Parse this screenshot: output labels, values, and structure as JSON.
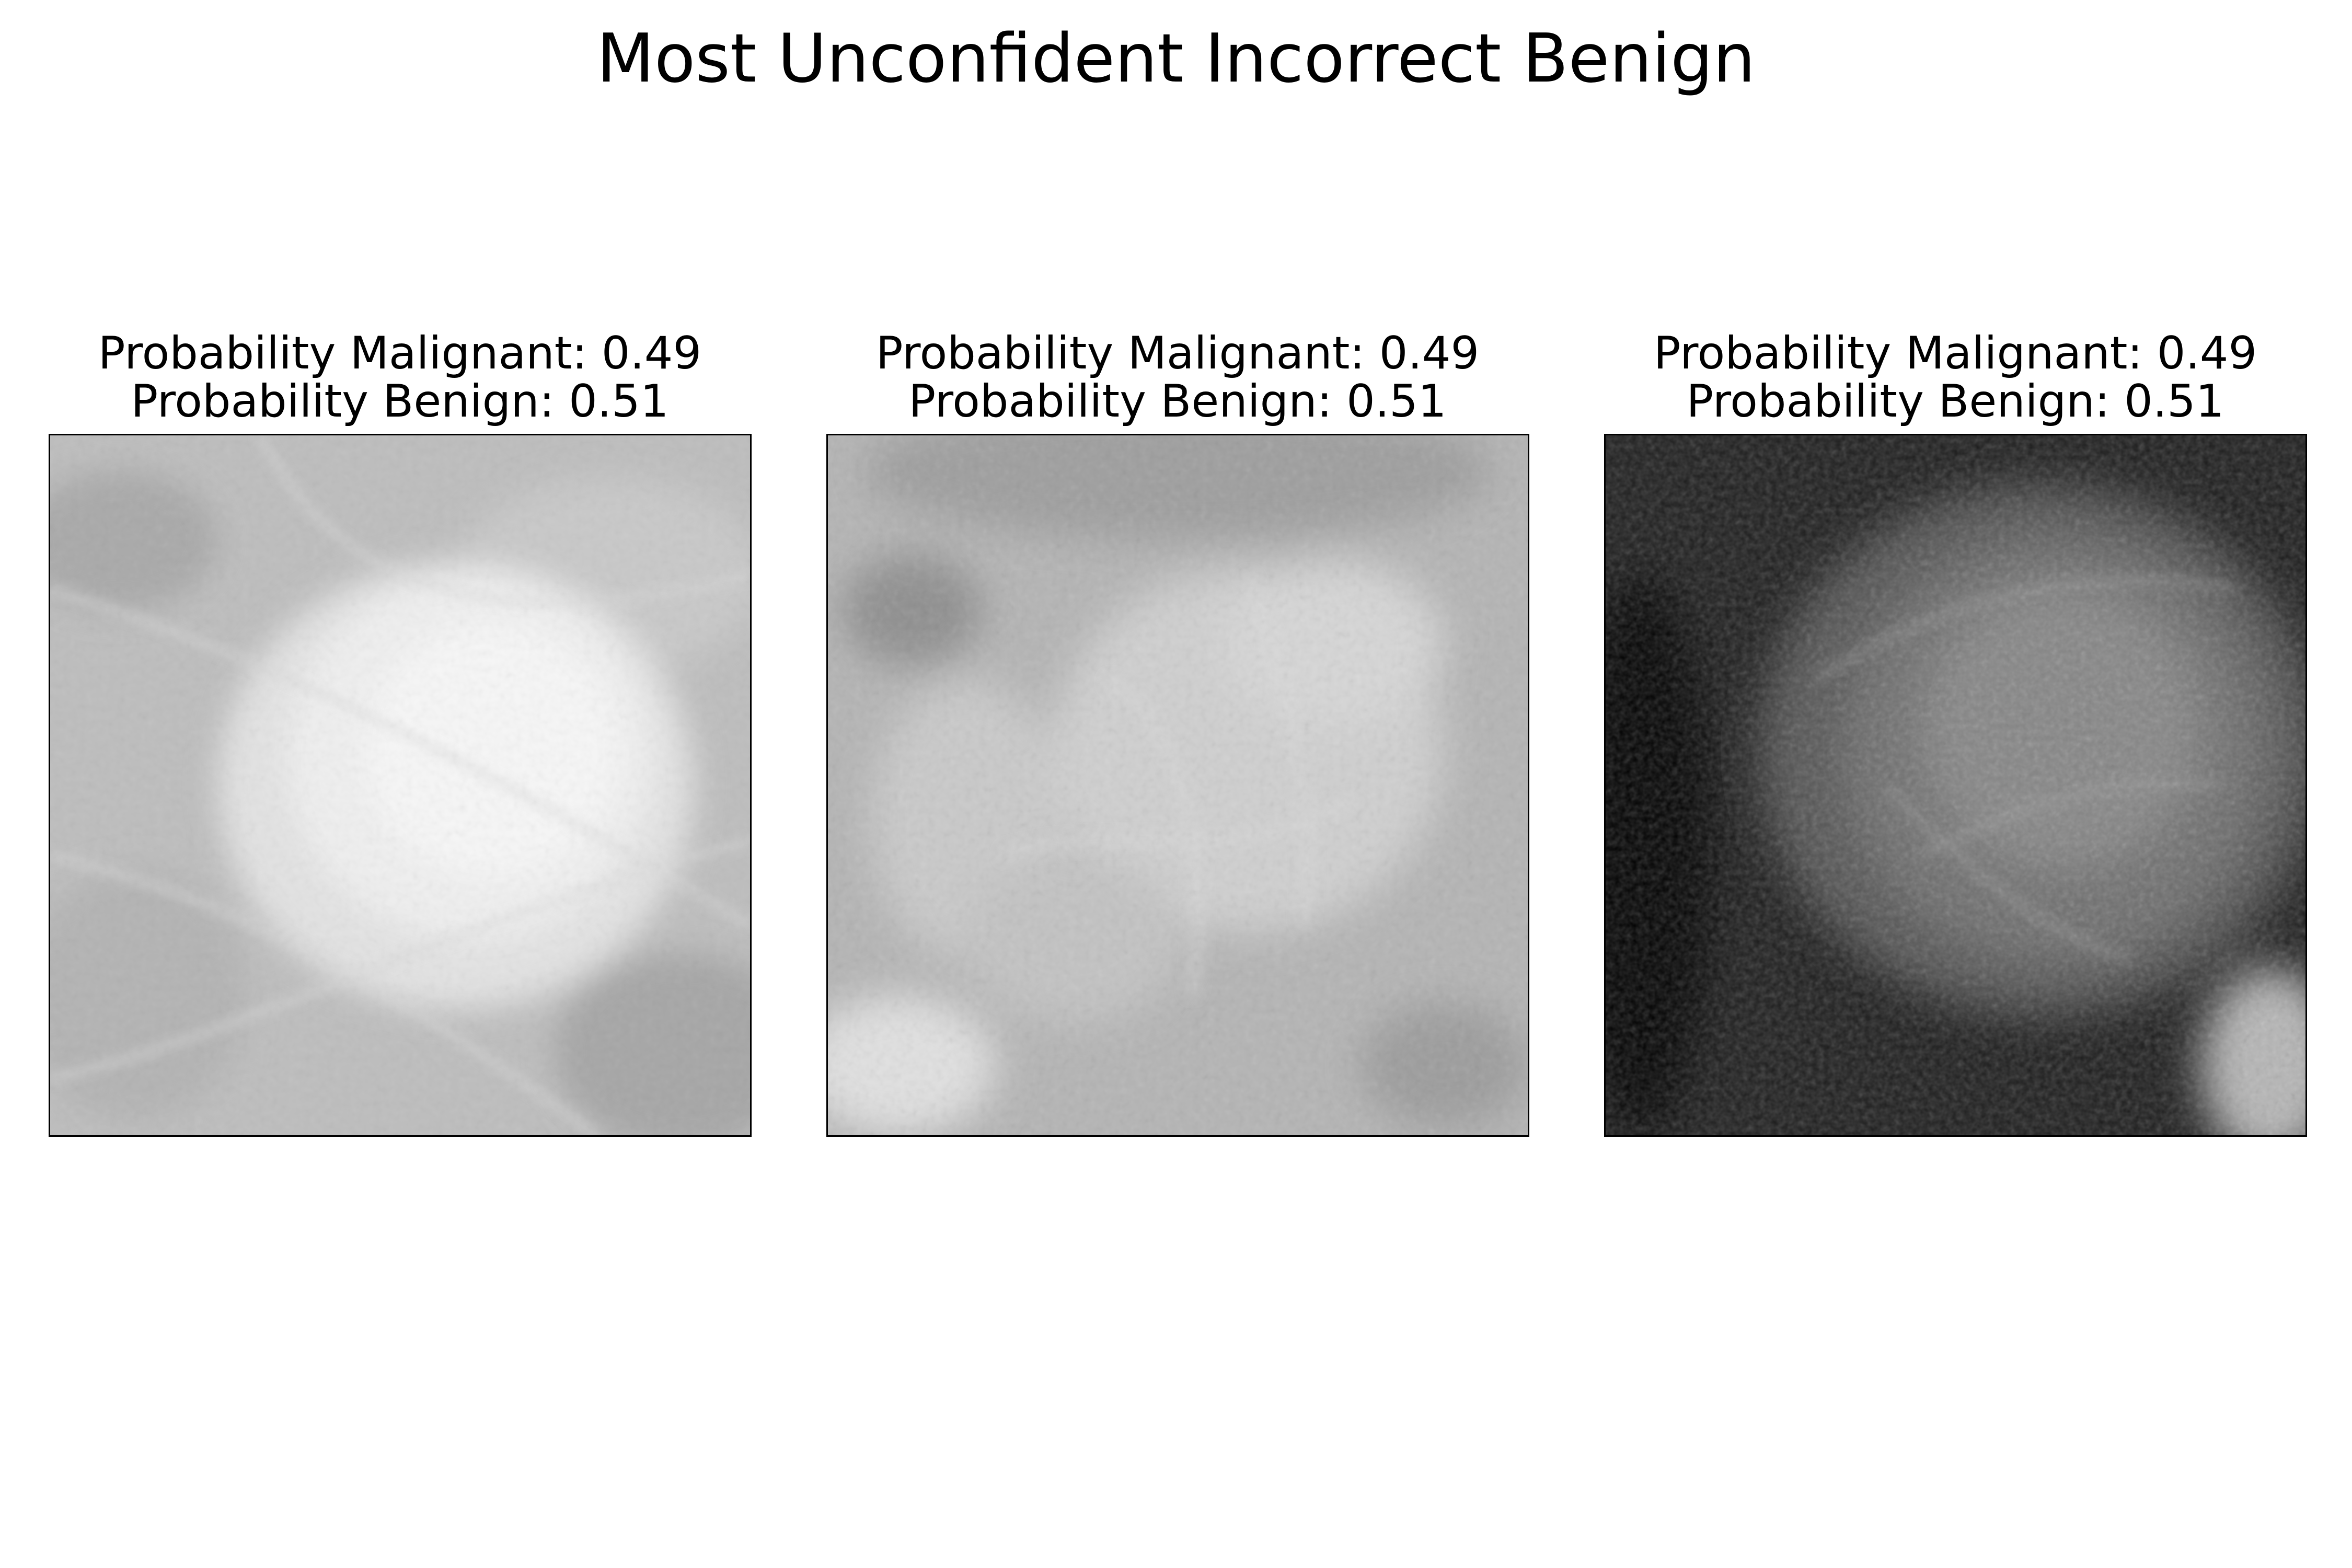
{
  "figure": {
    "title": "Most Unconfident Incorrect Benign"
  },
  "panels": [
    {
      "malignant_line": "Probability Malignant: 0.49",
      "benign_line": "Probability Benign: 0.51",
      "probability_malignant": 0.49,
      "probability_benign": 0.51
    },
    {
      "malignant_line": "Probability Malignant: 0.49",
      "benign_line": "Probability Benign: 0.51",
      "probability_malignant": 0.49,
      "probability_benign": 0.51
    },
    {
      "malignant_line": "Probability Malignant: 0.49",
      "benign_line": "Probability Benign: 0.51",
      "probability_malignant": 0.49,
      "probability_benign": 0.51
    }
  ]
}
